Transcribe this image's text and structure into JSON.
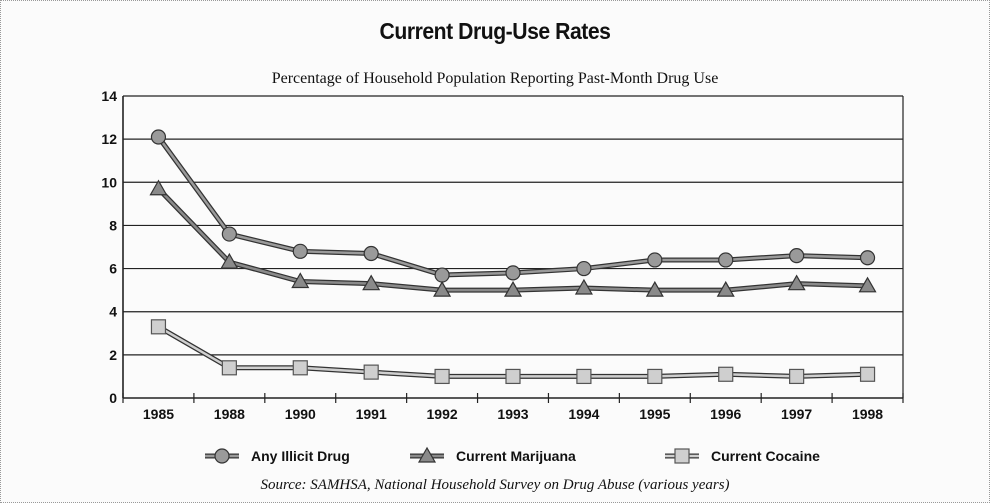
{
  "chart_data": {
    "type": "line",
    "title": "Current Drug-Use Rates",
    "subtitle": "Percentage of Household Population Reporting Past-Month Drug Use",
    "source": "Source:  SAMHSA, National Household Survey on Drug Abuse (various years)",
    "categories": [
      "1985",
      "1988",
      "1990",
      "1991",
      "1992",
      "1993",
      "1994",
      "1995",
      "1996",
      "1997",
      "1998"
    ],
    "y_ticks": [
      "0",
      "2",
      "4",
      "6",
      "8",
      "10",
      "12",
      "14"
    ],
    "ylim": [
      0,
      14
    ],
    "grid": true,
    "legend_position": "bottom",
    "series": [
      {
        "name": "Any Illicit Drug",
        "marker": "circle",
        "color": "#9a9a9a",
        "values": [
          12.1,
          7.6,
          6.8,
          6.7,
          5.7,
          5.8,
          6.0,
          6.4,
          6.4,
          6.6,
          6.5
        ]
      },
      {
        "name": "Current Marijuana",
        "marker": "triangle",
        "color": "#8a8a8a",
        "values": [
          9.7,
          6.3,
          5.4,
          5.3,
          5.0,
          5.0,
          5.1,
          5.0,
          5.0,
          5.3,
          5.2
        ]
      },
      {
        "name": "Current Cocaine",
        "marker": "square",
        "color": "#cfcfcf",
        "values": [
          3.3,
          1.4,
          1.4,
          1.2,
          1.0,
          1.0,
          1.0,
          1.0,
          1.1,
          1.0,
          1.1
        ]
      }
    ]
  }
}
